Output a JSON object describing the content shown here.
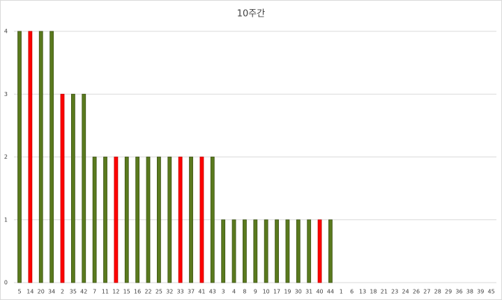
{
  "chart_data": {
    "type": "bar",
    "title": "10주간",
    "categories": [
      "5",
      "14",
      "20",
      "34",
      "2",
      "35",
      "42",
      "7",
      "11",
      "12",
      "15",
      "16",
      "22",
      "25",
      "32",
      "33",
      "37",
      "41",
      "43",
      "3",
      "4",
      "8",
      "9",
      "10",
      "17",
      "19",
      "30",
      "31",
      "40",
      "44",
      "1",
      "6",
      "13",
      "18",
      "21",
      "23",
      "24",
      "26",
      "27",
      "28",
      "29",
      "36",
      "38",
      "39",
      "45"
    ],
    "values": [
      4,
      4,
      4,
      4,
      3,
      3,
      3,
      2,
      2,
      2,
      2,
      2,
      2,
      2,
      2,
      2,
      2,
      2,
      2,
      1,
      1,
      1,
      1,
      1,
      1,
      1,
      1,
      1,
      1,
      1,
      0,
      0,
      0,
      0,
      0,
      0,
      0,
      0,
      0,
      0,
      0,
      0,
      0,
      0,
      0
    ],
    "colors": [
      "#5a7a1e",
      "#ff0000",
      "#5a7a1e",
      "#5a7a1e",
      "#ff0000",
      "#5a7a1e",
      "#5a7a1e",
      "#5a7a1e",
      "#5a7a1e",
      "#ff0000",
      "#5a7a1e",
      "#5a7a1e",
      "#5a7a1e",
      "#5a7a1e",
      "#5a7a1e",
      "#ff0000",
      "#5a7a1e",
      "#ff0000",
      "#5a7a1e",
      "#5a7a1e",
      "#5a7a1e",
      "#5a7a1e",
      "#5a7a1e",
      "#5a7a1e",
      "#5a7a1e",
      "#5a7a1e",
      "#5a7a1e",
      "#5a7a1e",
      "#ff0000",
      "#5a7a1e",
      "#5a7a1e",
      "#5a7a1e",
      "#5a7a1e",
      "#5a7a1e",
      "#5a7a1e",
      "#5a7a1e",
      "#5a7a1e",
      "#5a7a1e",
      "#5a7a1e",
      "#5a7a1e",
      "#5a7a1e",
      "#5a7a1e",
      "#5a7a1e",
      "#5a7a1e",
      "#5a7a1e"
    ],
    "ylim": [
      0,
      4
    ],
    "yticks": [
      0,
      1,
      2,
      3,
      4
    ],
    "grid": true
  }
}
